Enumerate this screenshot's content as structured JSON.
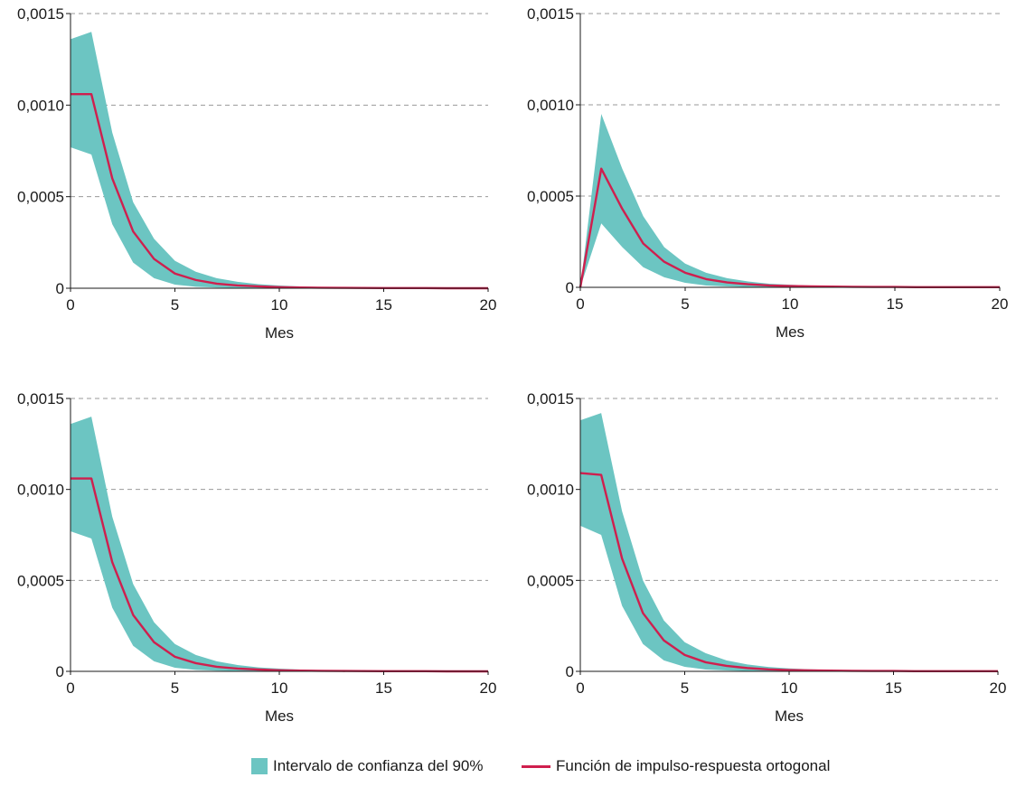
{
  "colors": {
    "band": "#6cc5c2",
    "line": "#cf1f4e",
    "grid": "#9a9a9a",
    "axis": "#1a1a1a",
    "text": "#1a1a1a"
  },
  "legend": {
    "band_label": "Intervalo de confianza del 90%",
    "line_label": "Función de impulso-respuesta ortogonal"
  },
  "chart_data": [
    {
      "type": "area",
      "xlabel": "Mes",
      "xlim": [
        0,
        20
      ],
      "ylim": [
        0,
        0.0015
      ],
      "x_ticks": [
        0,
        5,
        10,
        15,
        20
      ],
      "x_tick_labels": [
        "0",
        "5",
        "10",
        "15",
        "20"
      ],
      "y_ticks": [
        0,
        0.0005,
        0.001,
        0.0015
      ],
      "y_tick_labels": [
        "0",
        "0,0005",
        "0,0010",
        "0,0015"
      ],
      "grid": "horizontal dashed",
      "series": [
        {
          "role": "irf",
          "x": [
            0,
            1,
            2,
            3,
            4,
            5,
            6,
            7,
            8,
            9,
            10,
            11,
            12,
            13,
            14,
            15,
            16,
            17,
            18,
            19,
            20
          ],
          "values": [
            0.00106,
            0.00106,
            0.0006,
            0.00031,
            0.00016,
            8e-05,
            4.5e-05,
            2.5e-05,
            1.5e-05,
            1e-05,
            6e-06,
            4e-06,
            3e-06,
            2e-06,
            1.5e-06,
            1e-06,
            1e-06,
            1e-06,
            0,
            0,
            0
          ]
        },
        {
          "role": "band_upper",
          "x": [
            0,
            1,
            2,
            3,
            4,
            5,
            6,
            7,
            8,
            9,
            10,
            11,
            12,
            13,
            14,
            15,
            16,
            17,
            18,
            19,
            20
          ],
          "values": [
            0.00136,
            0.0014,
            0.00085,
            0.00047,
            0.00027,
            0.00015,
            9e-05,
            5.5e-05,
            3.5e-05,
            2.2e-05,
            1.5e-05,
            1e-05,
            7e-06,
            5e-06,
            4e-06,
            3e-06,
            2e-06,
            2e-06,
            1e-06,
            1e-06,
            1e-06
          ]
        },
        {
          "role": "band_lower",
          "x": [
            0,
            1,
            2,
            3,
            4,
            5,
            6,
            7,
            8,
            9,
            10,
            11,
            12,
            13,
            14,
            15,
            16,
            17,
            18,
            19,
            20
          ],
          "values": [
            0.00077,
            0.00073,
            0.00035,
            0.00014,
            5.5e-05,
            2e-05,
            8e-06,
            4e-06,
            2e-06,
            1e-06,
            0,
            0,
            0,
            0,
            0,
            0,
            0,
            0,
            0,
            0,
            0
          ]
        }
      ]
    },
    {
      "type": "area",
      "xlabel": "Mes",
      "xlim": [
        0,
        20
      ],
      "ylim": [
        0,
        0.0015
      ],
      "x_ticks": [
        0,
        5,
        10,
        15,
        20
      ],
      "x_tick_labels": [
        "0",
        "5",
        "10",
        "15",
        "20"
      ],
      "y_ticks": [
        0,
        0.0005,
        0.001,
        0.0015
      ],
      "y_tick_labels": [
        "0",
        "0,0005",
        "0,0010",
        "0,0015"
      ],
      "grid": "horizontal dashed",
      "series": [
        {
          "role": "irf",
          "x": [
            0,
            1,
            2,
            3,
            4,
            5,
            6,
            7,
            8,
            9,
            10,
            11,
            12,
            13,
            14,
            15,
            16,
            17,
            18,
            19,
            20
          ],
          "values": [
            0,
            0.00065,
            0.00043,
            0.00024,
            0.00014,
            8e-05,
            4.5e-05,
            2.7e-05,
            1.7e-05,
            1e-05,
            7e-06,
            5e-06,
            4e-06,
            3e-06,
            2e-06,
            2e-06,
            1e-06,
            1e-06,
            1e-06,
            1e-06,
            1e-06
          ]
        },
        {
          "role": "band_upper",
          "x": [
            0,
            1,
            2,
            3,
            4,
            5,
            6,
            7,
            8,
            9,
            10,
            11,
            12,
            13,
            14,
            15,
            16,
            17,
            18,
            19,
            20
          ],
          "values": [
            0,
            0.00095,
            0.00065,
            0.00039,
            0.00022,
            0.00013,
            8e-05,
            5e-05,
            3.2e-05,
            2e-05,
            1.4e-05,
            1e-05,
            8e-06,
            6e-06,
            5e-06,
            4e-06,
            3e-06,
            3e-06,
            2e-06,
            2e-06,
            2e-06
          ]
        },
        {
          "role": "band_lower",
          "x": [
            0,
            1,
            2,
            3,
            4,
            5,
            6,
            7,
            8,
            9,
            10,
            11,
            12,
            13,
            14,
            15,
            16,
            17,
            18,
            19,
            20
          ],
          "values": [
            0,
            0.00035,
            0.00022,
            0.00011,
            5.5e-05,
            2.5e-05,
            1e-05,
            5e-06,
            2e-06,
            1e-06,
            0,
            0,
            0,
            0,
            0,
            0,
            0,
            0,
            0,
            0,
            0
          ]
        }
      ]
    },
    {
      "type": "area",
      "xlabel": "Mes",
      "xlim": [
        0,
        20
      ],
      "ylim": [
        0,
        0.0015
      ],
      "x_ticks": [
        0,
        5,
        10,
        15,
        20
      ],
      "x_tick_labels": [
        "0",
        "5",
        "10",
        "15",
        "20"
      ],
      "y_ticks": [
        0,
        0.0005,
        0.001,
        0.0015
      ],
      "y_tick_labels": [
        "0",
        "0,0005",
        "0,0010",
        "0,0015"
      ],
      "grid": "horizontal dashed",
      "series": [
        {
          "role": "irf",
          "x": [
            0,
            1,
            2,
            3,
            4,
            5,
            6,
            7,
            8,
            9,
            10,
            11,
            12,
            13,
            14,
            15,
            16,
            17,
            18,
            19,
            20
          ],
          "values": [
            0.00106,
            0.00106,
            0.0006,
            0.00031,
            0.00016,
            8e-05,
            4.5e-05,
            2.5e-05,
            1.5e-05,
            1e-05,
            6e-06,
            4e-06,
            3e-06,
            2e-06,
            1.5e-06,
            1e-06,
            1e-06,
            1e-06,
            0,
            0,
            0
          ]
        },
        {
          "role": "band_upper",
          "x": [
            0,
            1,
            2,
            3,
            4,
            5,
            6,
            7,
            8,
            9,
            10,
            11,
            12,
            13,
            14,
            15,
            16,
            17,
            18,
            19,
            20
          ],
          "values": [
            0.00136,
            0.0014,
            0.00085,
            0.00048,
            0.00027,
            0.00015,
            9e-05,
            5.5e-05,
            3.5e-05,
            2.2e-05,
            1.5e-05,
            1e-05,
            7e-06,
            5e-06,
            4e-06,
            3e-06,
            2e-06,
            2e-06,
            1e-06,
            1e-06,
            1e-06
          ]
        },
        {
          "role": "band_lower",
          "x": [
            0,
            1,
            2,
            3,
            4,
            5,
            6,
            7,
            8,
            9,
            10,
            11,
            12,
            13,
            14,
            15,
            16,
            17,
            18,
            19,
            20
          ],
          "values": [
            0.00077,
            0.00073,
            0.00035,
            0.00014,
            5.5e-05,
            2e-05,
            8e-06,
            4e-06,
            2e-06,
            1e-06,
            0,
            0,
            0,
            0,
            0,
            0,
            0,
            0,
            0,
            0,
            0
          ]
        }
      ]
    },
    {
      "type": "area",
      "xlabel": "Mes",
      "xlim": [
        0,
        20
      ],
      "ylim": [
        0,
        0.0015
      ],
      "x_ticks": [
        0,
        5,
        10,
        15,
        20
      ],
      "x_tick_labels": [
        "0",
        "5",
        "10",
        "15",
        "20"
      ],
      "y_ticks": [
        0,
        0.0005,
        0.001,
        0.0015
      ],
      "y_tick_labels": [
        "0",
        "0,0005",
        "0,0010",
        "0,0015"
      ],
      "grid": "horizontal dashed",
      "series": [
        {
          "role": "irf",
          "x": [
            0,
            1,
            2,
            3,
            4,
            5,
            6,
            7,
            8,
            9,
            10,
            11,
            12,
            13,
            14,
            15,
            16,
            17,
            18,
            19,
            20
          ],
          "values": [
            0.00109,
            0.00108,
            0.00062,
            0.00032,
            0.00017,
            9e-05,
            5e-05,
            3e-05,
            1.8e-05,
            1.1e-05,
            7e-06,
            5e-06,
            4e-06,
            3e-06,
            2e-06,
            2e-06,
            1e-06,
            1e-06,
            1e-06,
            1e-06,
            1e-06
          ]
        },
        {
          "role": "band_upper",
          "x": [
            0,
            1,
            2,
            3,
            4,
            5,
            6,
            7,
            8,
            9,
            10,
            11,
            12,
            13,
            14,
            15,
            16,
            17,
            18,
            19,
            20
          ],
          "values": [
            0.00138,
            0.00142,
            0.00088,
            0.0005,
            0.00028,
            0.00016,
            0.0001,
            6e-05,
            3.8e-05,
            2.4e-05,
            1.6e-05,
            1.1e-05,
            8e-06,
            6e-06,
            5e-06,
            4e-06,
            3e-06,
            3e-06,
            2e-06,
            2e-06,
            2e-06
          ]
        },
        {
          "role": "band_lower",
          "x": [
            0,
            1,
            2,
            3,
            4,
            5,
            6,
            7,
            8,
            9,
            10,
            11,
            12,
            13,
            14,
            15,
            16,
            17,
            18,
            19,
            20
          ],
          "values": [
            0.0008,
            0.00075,
            0.00036,
            0.00015,
            6e-05,
            2.5e-05,
            1e-05,
            5e-06,
            2e-06,
            1e-06,
            0,
            0,
            0,
            0,
            0,
            0,
            0,
            0,
            0,
            0,
            0
          ]
        }
      ]
    }
  ]
}
